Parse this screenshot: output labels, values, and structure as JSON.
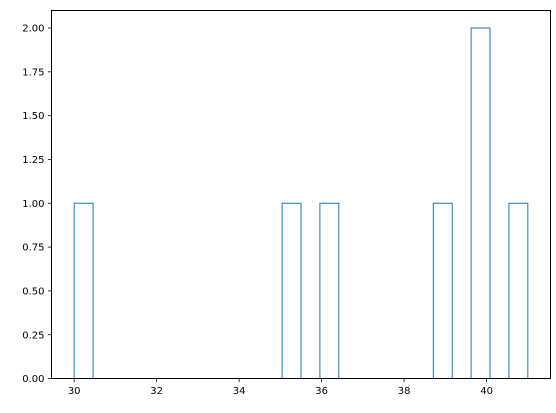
{
  "chart_data": {
    "type": "histogram-step",
    "bins": 24,
    "range": [
      30,
      41
    ],
    "counts": [
      1,
      0,
      0,
      0,
      0,
      0,
      0,
      0,
      0,
      0,
      0,
      1,
      0,
      1,
      0,
      0,
      0,
      0,
      0,
      1,
      0,
      2,
      0,
      1
    ],
    "xlim": [
      29.45,
      41.55
    ],
    "ylim": [
      0,
      2.1
    ],
    "xticks": [
      "30",
      "32",
      "34",
      "36",
      "38",
      "40"
    ],
    "xtick_values": [
      30,
      32,
      34,
      36,
      38,
      40
    ],
    "yticks": [
      "0.00",
      "0.25",
      "0.50",
      "0.75",
      "1.00",
      "1.25",
      "1.50",
      "1.75",
      "2.00"
    ],
    "ytick_values": [
      0,
      0.25,
      0.5,
      0.75,
      1.0,
      1.25,
      1.5,
      1.75,
      2.0
    ],
    "title": "",
    "xlabel": "",
    "ylabel": "",
    "grid": false,
    "line_color": "#1f77b4"
  }
}
